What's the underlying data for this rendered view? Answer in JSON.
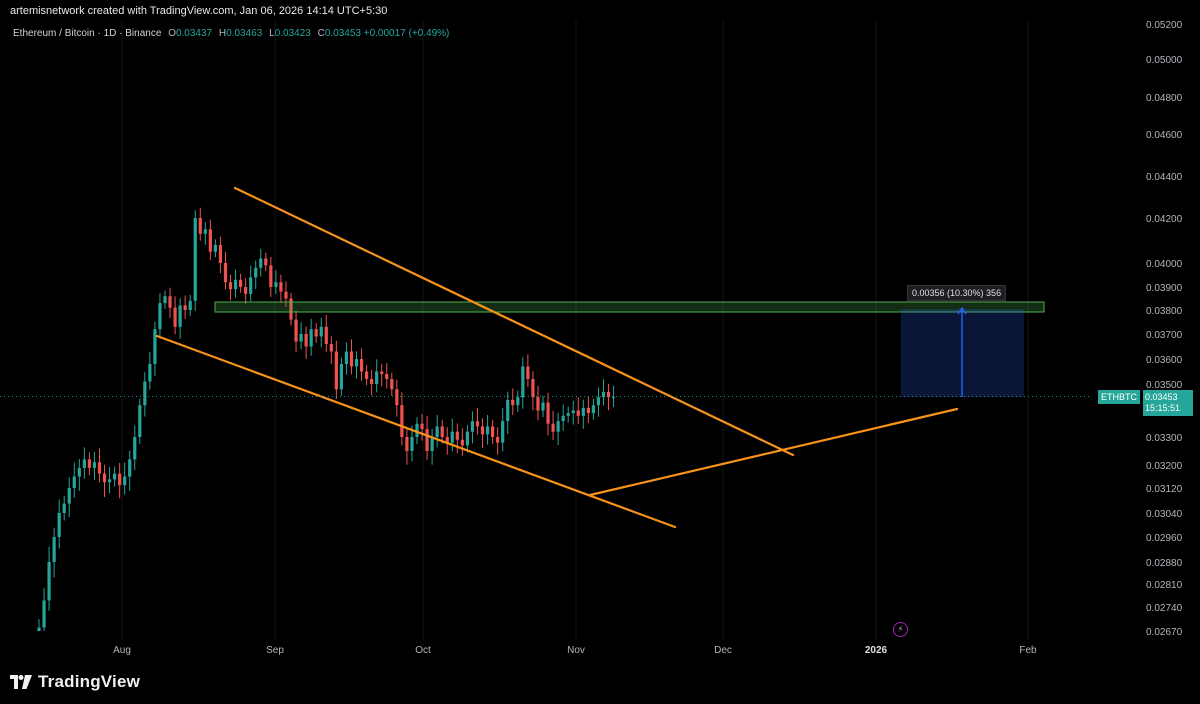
{
  "header": {
    "author_line": "artemisnetwork created with TradingView.com, Jan 06, 2026 14:14 UTC+5:30"
  },
  "legend": {
    "symbol": "Ethereum / Bitcoin · 1D · Binance",
    "o_label": "O",
    "o_value": "0.03437",
    "h_label": "H",
    "h_value": "0.03463",
    "l_label": "L",
    "l_value": "0.03423",
    "c_label": "C",
    "c_value": "0.03453",
    "change": "+0.00017 (+0.49%)"
  },
  "price_axis": {
    "labels": [
      "0.05200",
      "0.05000",
      "0.04800",
      "0.04600",
      "0.04400",
      "0.04200",
      "0.04000",
      "0.03900",
      "0.03800",
      "0.03700",
      "0.03600",
      "0.03500",
      "0.03300",
      "0.03200",
      "0.03120",
      "0.03040",
      "0.02960",
      "0.02880",
      "0.02810",
      "0.02740",
      "0.02670"
    ]
  },
  "time_axis": {
    "labels": [
      "Aug",
      "Sep",
      "Oct",
      "Nov",
      "Dec",
      "2026",
      "Feb"
    ]
  },
  "price_badge": {
    "symbol": "ETHBTC",
    "price": "0.03453",
    "countdown": "15:15:51"
  },
  "measure": {
    "label": "0.00356 (10.30%) 356"
  },
  "colors": {
    "up": "#26a69a",
    "down": "#ef5350",
    "trendline": "#f7931a",
    "zone": "#4caf50",
    "measure_box": "#2962ff",
    "background": "#000000"
  },
  "footer": {
    "brand": "TradingView",
    "logo_icon": "tradingview-logo-icon"
  },
  "chart_data": {
    "type": "candlestick",
    "title": "Ethereum / Bitcoin · 1D · Binance",
    "series": [
      {
        "name": "Ethereum / Bitcoin",
        "note": "approx closes",
        "values": [
          0.0268,
          0.0276,
          0.0288,
          0.0296,
          0.0304,
          0.0307,
          0.0312,
          0.0316,
          0.0319,
          0.0322,
          0.0319,
          0.0321,
          0.0317,
          0.0314,
          0.0315,
          0.0317,
          0.0313,
          0.0316,
          0.0322,
          0.033,
          0.0342,
          0.0351,
          0.0358,
          0.0372,
          0.0383,
          0.0386,
          0.0381,
          0.0373,
          0.0382,
          0.038,
          0.0384,
          0.042,
          0.0413,
          0.0415,
          0.0405,
          0.0408,
          0.04,
          0.0392,
          0.0389,
          0.0393,
          0.039,
          0.0387,
          0.0394,
          0.0398,
          0.0402,
          0.0399,
          0.039,
          0.0392,
          0.0388,
          0.0385,
          0.0376,
          0.0367,
          0.037,
          0.0365,
          0.0372,
          0.0369,
          0.0373,
          0.0366,
          0.0363,
          0.0348,
          0.0358,
          0.0363,
          0.0357,
          0.036,
          0.0355,
          0.0352,
          0.035,
          0.0355,
          0.0354,
          0.0352,
          0.0348,
          0.0342,
          0.033,
          0.0325,
          0.033,
          0.0335,
          0.0333,
          0.0325,
          0.033,
          0.0334,
          0.033,
          0.0328,
          0.0332,
          0.0329,
          0.0327,
          0.0332,
          0.0336,
          0.0334,
          0.0331,
          0.0334,
          0.033,
          0.0328,
          0.0336,
          0.0344,
          0.0342,
          0.0345,
          0.0357,
          0.0352,
          0.0345,
          0.034,
          0.0343,
          0.0335,
          0.0332,
          0.0336,
          0.0338,
          0.0339,
          0.034,
          0.0338,
          0.0341,
          0.0339,
          0.0342,
          0.0345,
          0.0347,
          0.0345,
          0.0345
        ]
      }
    ],
    "yrange": [
      0.0267,
      0.052
    ],
    "current_price": 0.03453,
    "target_price": 0.03809,
    "grid": false
  }
}
